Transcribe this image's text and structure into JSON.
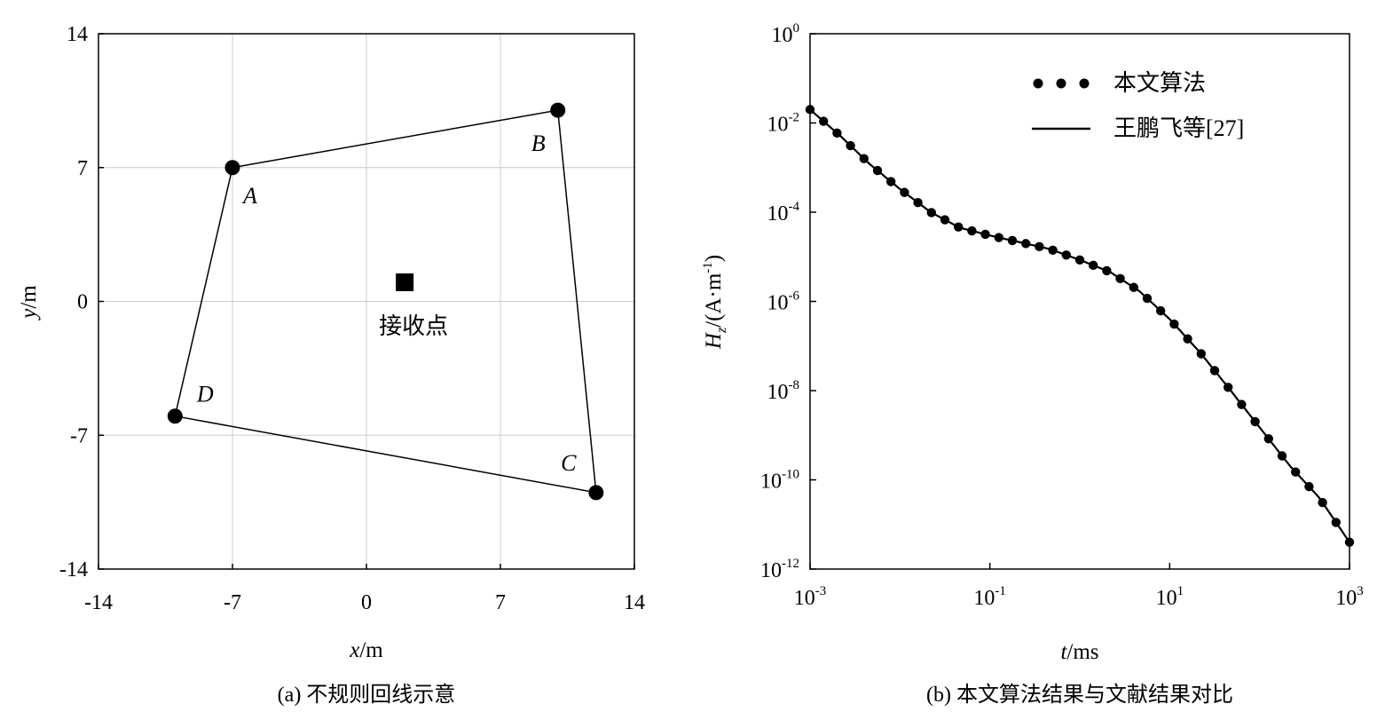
{
  "chart_data": [
    {
      "type": "scatter",
      "xlabel": "x/m",
      "ylabel": "y/m",
      "xlim": [
        -14,
        14
      ],
      "ylim": [
        -14,
        14
      ],
      "xticks": [
        "-14",
        "-7",
        "0",
        "7",
        "14"
      ],
      "yticks": [
        "14",
        "7",
        "0",
        "-7",
        "-14"
      ],
      "grid": true,
      "caption": "(a) 不规则回线示意",
      "loop_vertices": [
        {
          "label": "A",
          "x": -7,
          "y": 7
        },
        {
          "label": "B",
          "x": 10,
          "y": 10
        },
        {
          "label": "C",
          "x": 12,
          "y": -10
        },
        {
          "label": "D",
          "x": -10,
          "y": -6
        }
      ],
      "receiver": {
        "label": "接收点",
        "x": 2,
        "y": 1
      }
    },
    {
      "type": "line",
      "xlabel": "t/ms",
      "ylabel": "Hz/(A·m-1)",
      "xscale": "log",
      "yscale": "log",
      "xlim": [
        0.001,
        1000
      ],
      "ylim": [
        1e-12,
        1
      ],
      "xticks": [
        {
          "base": "10",
          "exp": "-3"
        },
        {
          "base": "10",
          "exp": "-1"
        },
        {
          "base": "10",
          "exp": "1"
        },
        {
          "base": "10",
          "exp": "3"
        }
      ],
      "yticks": [
        {
          "base": "10",
          "exp": "0"
        },
        {
          "base": "10",
          "exp": "-2"
        },
        {
          "base": "10",
          "exp": "-4"
        },
        {
          "base": "10",
          "exp": "-6"
        },
        {
          "base": "10",
          "exp": "-8"
        },
        {
          "base": "10",
          "exp": "-10"
        },
        {
          "base": "10",
          "exp": "-12"
        }
      ],
      "legend": "top-center",
      "caption": "(b) 本文算法结果与文献结果对比",
      "series": [
        {
          "name": "本文算法",
          "style": "dots"
        },
        {
          "name": "王鹏飞等[27]",
          "style": "solid"
        }
      ],
      "curve": [
        {
          "t": 0.001,
          "hz": 0.02
        },
        {
          "t": 0.0022,
          "hz": 0.005
        },
        {
          "t": 0.0046,
          "hz": 0.0012
        },
        {
          "t": 0.01,
          "hz": 0.00033
        },
        {
          "t": 0.022,
          "hz": 0.0001
        },
        {
          "t": 0.046,
          "hz": 4.5e-05
        },
        {
          "t": 0.1,
          "hz": 3e-05
        },
        {
          "t": 0.22,
          "hz": 2.1e-05
        },
        {
          "t": 0.46,
          "hz": 1.5e-05
        },
        {
          "t": 1,
          "hz": 8.5e-06
        },
        {
          "t": 2.2,
          "hz": 4.5e-06
        },
        {
          "t": 4.6,
          "hz": 1.7e-06
        },
        {
          "t": 10,
          "hz": 4e-07
        },
        {
          "t": 22,
          "hz": 7e-08
        },
        {
          "t": 46,
          "hz": 1.1e-08
        },
        {
          "t": 100,
          "hz": 1.5e-09
        },
        {
          "t": 220,
          "hz": 2e-10
        },
        {
          "t": 460,
          "hz": 4e-11
        },
        {
          "t": 1000,
          "hz": 4e-12
        }
      ]
    }
  ],
  "colors": {
    "axis": "#000000",
    "grid": "#cccccc",
    "marker": "#000000"
  }
}
